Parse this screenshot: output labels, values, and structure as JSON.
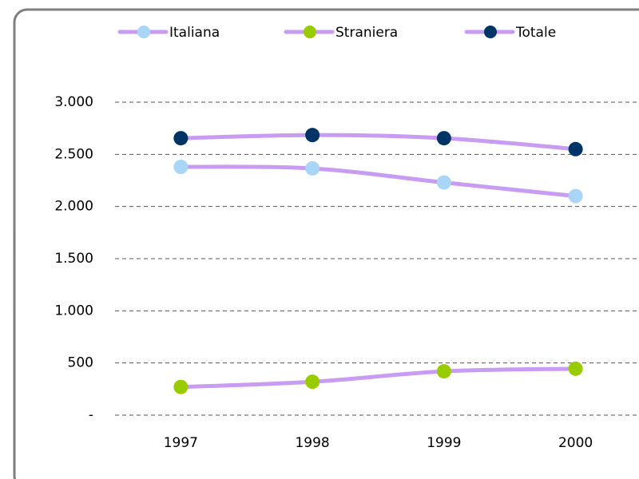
{
  "chart_data": {
    "type": "line",
    "categories": [
      "1997",
      "1998",
      "1999",
      "2000"
    ],
    "series": [
      {
        "name": "Italiana",
        "color": "#a9d5f7",
        "line_color": "#c79cf2",
        "values": [
          2380,
          2365,
          2230,
          2100
        ]
      },
      {
        "name": "Straniera",
        "color": "#99cc00",
        "line_color": "#c79cf2",
        "values": [
          270,
          320,
          420,
          445
        ]
      },
      {
        "name": "Totale",
        "color": "#003366",
        "line_color": "#c79cf2",
        "values": [
          2655,
          2685,
          2655,
          2550
        ]
      }
    ],
    "ylim": [
      0,
      3000
    ],
    "yticks": [
      {
        "value": 0,
        "label": "-"
      },
      500,
      {
        "value": 1000,
        "label": "1.000"
      },
      {
        "value": 1500,
        "label": "1.500"
      },
      {
        "value": 2000,
        "label": "2.000"
      },
      {
        "value": 2500,
        "label": "2.500"
      },
      {
        "value": 3000,
        "label": "3.000"
      }
    ],
    "grid": true,
    "smooth": true,
    "legend": "top"
  }
}
